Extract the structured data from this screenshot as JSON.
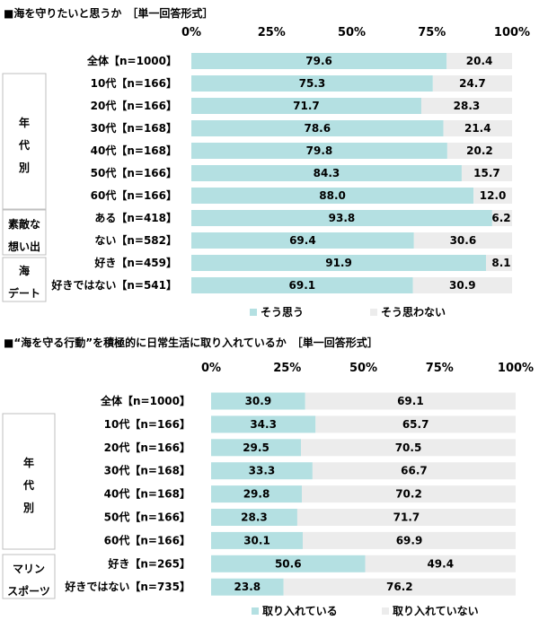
{
  "chart_data": [
    {
      "type": "bar",
      "stacked": true,
      "orientation": "horizontal",
      "title": "■海を守りたいと思うか　［単一回答形式］",
      "unit": "%",
      "xlim": [
        0,
        100
      ],
      "ticks": [
        "0%",
        "25%",
        "50%",
        "75%",
        "100%"
      ],
      "categories": [
        "全体【n=1000】",
        "10代【n=166】",
        "20代【n=166】",
        "30代【n=168】",
        "40代【n=168】",
        "50代【n=166】",
        "60代【n=166】",
        "ある【n=418】",
        "ない【n=582】",
        "好き【n=459】",
        "好きではない【n=541】"
      ],
      "groups": [
        {
          "label": "年\n代\n別",
          "rows": [
            1,
            6
          ]
        },
        {
          "label": "素敵な\n想い出",
          "rows": [
            7,
            8
          ]
        },
        {
          "label": "海\nデート",
          "rows": [
            9,
            10
          ]
        }
      ],
      "series": [
        {
          "name": "そう思う",
          "values": [
            79.6,
            75.3,
            71.7,
            78.6,
            79.8,
            84.3,
            88.0,
            93.8,
            69.4,
            91.9,
            69.1
          ]
        },
        {
          "name": "そう思わない",
          "values": [
            20.4,
            24.7,
            28.3,
            21.4,
            20.2,
            15.7,
            12.0,
            6.2,
            30.6,
            8.1,
            30.9
          ]
        }
      ],
      "labels": [
        [
          "79.6",
          "75.3",
          "71.7",
          "78.6",
          "79.8",
          "84.3",
          "88.0",
          "93.8",
          "69.4",
          "91.9",
          "69.1"
        ],
        [
          "20.4",
          "24.7",
          "28.3",
          "21.4",
          "20.2",
          "15.7",
          "12.0",
          "6.2",
          "30.6",
          "8.1",
          "30.9"
        ]
      ],
      "legend_position": "bottom",
      "grid": false
    },
    {
      "type": "bar",
      "stacked": true,
      "orientation": "horizontal",
      "title": "■“海を守る行動”を積極的に日常生活に取り入れているか　［単一回答形式］",
      "unit": "%",
      "xlim": [
        0,
        100
      ],
      "ticks": [
        "0%",
        "25%",
        "50%",
        "75%",
        "100%"
      ],
      "categories": [
        "全体【n=1000】",
        "10代【n=166】",
        "20代【n=166】",
        "30代【n=168】",
        "40代【n=168】",
        "50代【n=166】",
        "60代【n=166】",
        "好き【n=265】",
        "好きではない【n=735】"
      ],
      "groups": [
        {
          "label": "年\n代\n別",
          "rows": [
            1,
            6
          ]
        },
        {
          "label": "マリン\nスポーツ",
          "rows": [
            7,
            8
          ]
        }
      ],
      "series": [
        {
          "name": "取り入れている",
          "values": [
            30.9,
            34.3,
            29.5,
            33.3,
            29.8,
            28.3,
            30.1,
            50.6,
            23.8
          ]
        },
        {
          "name": "取り入れていない",
          "values": [
            69.1,
            65.7,
            70.5,
            66.7,
            70.2,
            71.7,
            69.9,
            49.4,
            76.2
          ]
        }
      ],
      "labels": [
        [
          "30.9",
          "34.3",
          "29.5",
          "33.3",
          "29.8",
          "28.3",
          "30.1",
          "50.6",
          "23.8"
        ],
        [
          "69.1",
          "65.7",
          "70.5",
          "66.7",
          "70.2",
          "71.7",
          "69.9",
          "49.4",
          "76.2"
        ]
      ],
      "legend_position": "bottom",
      "grid": false
    }
  ],
  "colors": {
    "positive": "#b4e0e2",
    "negative": "#ececec",
    "text": "#000000",
    "frame": "#bfbfbf"
  }
}
